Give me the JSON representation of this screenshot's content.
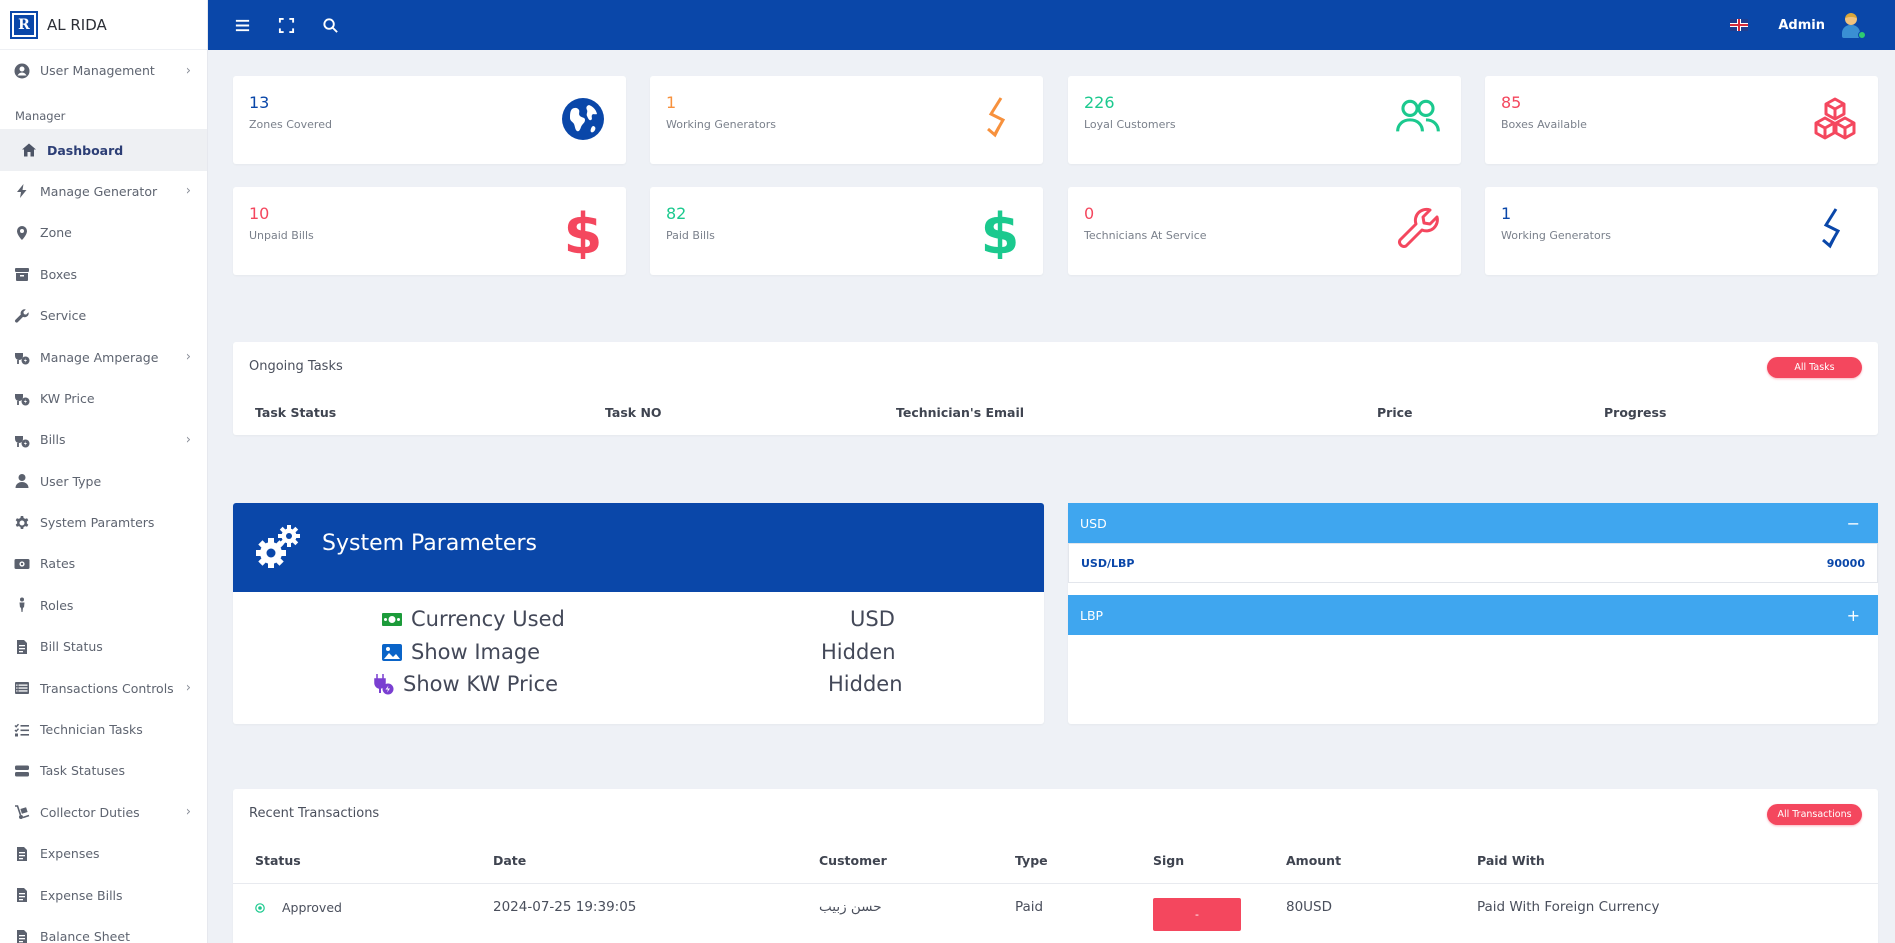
{
  "brand": {
    "name": "AL RIDA",
    "logo_text": "R"
  },
  "topbar": {
    "admin_name": "Admin"
  },
  "sidebar": {
    "section_label": "Manager",
    "top_item": {
      "label": "User Management",
      "icon": "user-circle-icon"
    },
    "items": [
      {
        "label": "Dashboard",
        "icon": "home-icon",
        "active": true
      },
      {
        "label": "Manage Generator",
        "icon": "bolt-icon",
        "chevron": true
      },
      {
        "label": "Zone",
        "icon": "map-pin-icon"
      },
      {
        "label": "Boxes",
        "icon": "archive-icon"
      },
      {
        "label": "Service",
        "icon": "wrench-icon"
      },
      {
        "label": "Manage Amperage",
        "icon": "plug-icon",
        "chevron": true
      },
      {
        "label": "KW Price",
        "icon": "plug-icon"
      },
      {
        "label": "Bills",
        "icon": "plug-icon",
        "chevron": true
      },
      {
        "label": "User Type",
        "icon": "user-icon"
      },
      {
        "label": "System Paramters",
        "icon": "gear-icon"
      },
      {
        "label": "Rates",
        "icon": "money-icon"
      },
      {
        "label": "Roles",
        "icon": "person-icon"
      },
      {
        "label": "Bill Status",
        "icon": "invoice-icon"
      },
      {
        "label": "Transactions Controls",
        "icon": "list-icon",
        "chevron": true
      },
      {
        "label": "Technician Tasks",
        "icon": "tasks-icon"
      },
      {
        "label": "Task Statuses",
        "icon": "server-icon"
      },
      {
        "label": "Collector Duties",
        "icon": "dolly-icon",
        "chevron": true
      },
      {
        "label": "Expenses",
        "icon": "invoice-icon"
      },
      {
        "label": "Expense Bills",
        "icon": "invoice-icon"
      },
      {
        "label": "Balance Sheet",
        "icon": "invoice-icon"
      }
    ]
  },
  "stats": [
    {
      "value": "13",
      "label": "Zones Covered",
      "color": "#0a47a9",
      "icon": "globe-icon"
    },
    {
      "value": "1",
      "label": "Working Generators",
      "color": "#f7913d",
      "icon": "generator-bolt-icon"
    },
    {
      "value": "226",
      "label": "Loyal Customers",
      "color": "#1bc98e",
      "icon": "users-icon"
    },
    {
      "value": "85",
      "label": "Boxes Available",
      "color": "#f4475e",
      "icon": "boxes-icon"
    },
    {
      "value": "10",
      "label": "Unpaid Bills",
      "color": "#f4475e",
      "icon": "dollar-icon"
    },
    {
      "value": "82",
      "label": "Paid Bills",
      "color": "#1bc98e",
      "icon": "dollar-icon"
    },
    {
      "value": "0",
      "label": "Technicians At Service",
      "color": "#f4475e",
      "icon": "wrench-icon"
    },
    {
      "value": "1",
      "label": "Working Generators",
      "color": "#0a47a9",
      "icon": "generator-bolt-icon"
    }
  ],
  "tasks": {
    "title": "Ongoing Tasks",
    "button": "All Tasks",
    "columns": [
      "Task Status",
      "Task NO",
      "Technician's Email",
      "Price",
      "Progress"
    ]
  },
  "system_params": {
    "title": "System Parameters",
    "rows": [
      {
        "label": "Currency Used",
        "value": "USD",
        "icon": "money-bill-icon"
      },
      {
        "label": "Show Image",
        "value": "Hidden",
        "icon": "image-icon"
      },
      {
        "label": "Show KW Price",
        "value": "Hidden",
        "icon": "plug-bolt-icon"
      }
    ]
  },
  "currency": {
    "usd_label": "USD",
    "usd_sign": "−",
    "pair_label": "USD/LBP",
    "pair_value": "90000",
    "lbp_label": "LBP",
    "lbp_sign": "+"
  },
  "transactions": {
    "title": "Recent Transactions",
    "button": "All Transactions",
    "columns": [
      "Status",
      "Date",
      "Customer",
      "Type",
      "Sign",
      "Amount",
      "Paid With"
    ],
    "rows": [
      {
        "status": "Approved",
        "date": "2024-07-25 19:39:05",
        "customer": "حسن زبيب",
        "type": "Paid",
        "sign": "-",
        "amount": "80USD",
        "paid_with": "Paid With Foreign Currency"
      }
    ]
  }
}
